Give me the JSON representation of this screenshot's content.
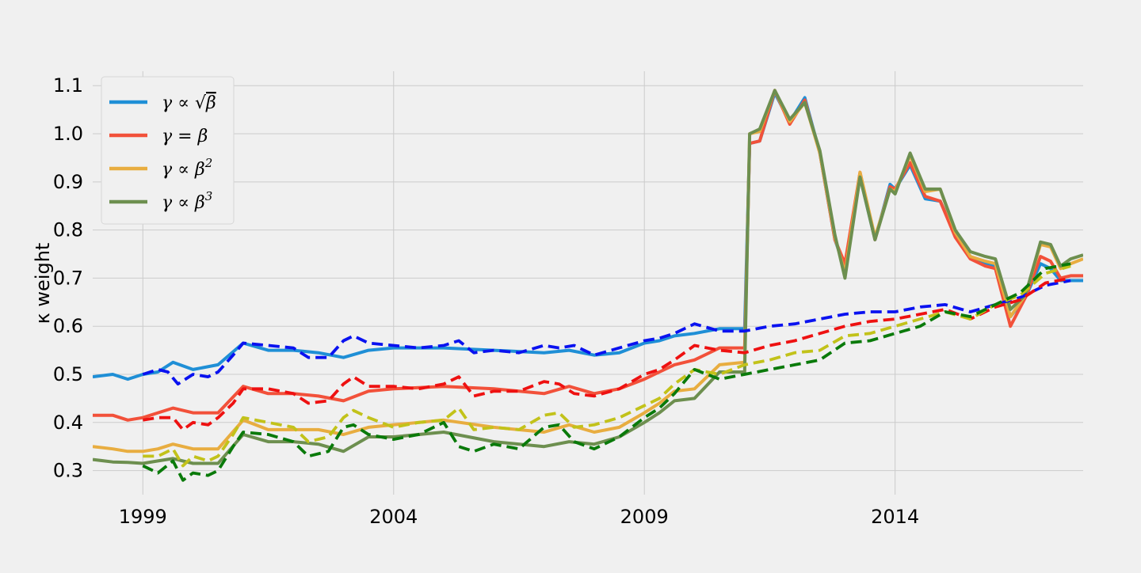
{
  "chart_data": {
    "type": "line",
    "ylabel": "κ weight",
    "xlim": [
      1998.0,
      2017.75
    ],
    "ylim": [
      0.25,
      1.13
    ],
    "xticks": [
      1999,
      2004,
      2009,
      2014
    ],
    "yticks": [
      0.3,
      0.4,
      0.5,
      0.6,
      0.7,
      0.8,
      0.9,
      1.0,
      1.1
    ],
    "grid": true,
    "legend_position": "top-left",
    "legend": [
      {
        "name": "γ ∝ √β",
        "color": "#1f8fd6"
      },
      {
        "name": "γ = β",
        "color": "#f2513a"
      },
      {
        "name": "γ ∝ β²",
        "color": "#e8ad40"
      },
      {
        "name": "γ ∝ β³",
        "color": "#6d8f4f"
      }
    ],
    "series": [
      {
        "key": "sqrt",
        "style": "solid",
        "color": "#1f8fd6",
        "x": [
          1998.0,
          1998.4,
          1998.7,
          1999.0,
          1999.3,
          1999.6,
          2000.0,
          2000.5,
          2001.0,
          2001.5,
          2002.0,
          2002.5,
          2003.0,
          2003.5,
          2004.0,
          2005.0,
          2006.0,
          2007.0,
          2007.5,
          2008.0,
          2008.5,
          2009.0,
          2009.3,
          2009.6,
          2010.0,
          2010.5,
          2011.0,
          2011.1,
          2011.3,
          2011.6,
          2011.9,
          2012.2,
          2012.5,
          2012.8,
          2013.0,
          2013.3,
          2013.6,
          2013.9,
          2014.0,
          2014.3,
          2014.6,
          2014.9,
          2015.2,
          2015.5,
          2015.8,
          2016.0,
          2016.3,
          2016.6,
          2016.9,
          2017.1,
          2017.3,
          2017.5,
          2017.75
        ],
        "y": [
          0.495,
          0.5,
          0.49,
          0.5,
          0.505,
          0.525,
          0.51,
          0.52,
          0.565,
          0.55,
          0.55,
          0.545,
          0.535,
          0.55,
          0.555,
          0.555,
          0.55,
          0.545,
          0.55,
          0.54,
          0.545,
          0.565,
          0.57,
          0.58,
          0.585,
          0.595,
          0.595,
          0.98,
          0.985,
          1.085,
          1.025,
          1.075,
          0.96,
          0.78,
          0.72,
          0.91,
          0.78,
          0.895,
          0.885,
          0.935,
          0.865,
          0.86,
          0.79,
          0.745,
          0.73,
          0.725,
          0.62,
          0.66,
          0.73,
          0.72,
          0.695,
          0.695,
          0.695
        ]
      },
      {
        "key": "linear",
        "style": "solid",
        "color": "#f2513a",
        "x": [
          1998.0,
          1998.4,
          1998.7,
          1999.0,
          1999.3,
          1999.6,
          2000.0,
          2000.5,
          2001.0,
          2001.5,
          2002.0,
          2002.5,
          2003.0,
          2003.5,
          2004.0,
          2005.0,
          2006.0,
          2007.0,
          2007.5,
          2008.0,
          2008.5,
          2009.0,
          2009.3,
          2009.6,
          2010.0,
          2010.5,
          2011.0,
          2011.1,
          2011.3,
          2011.6,
          2011.9,
          2012.2,
          2012.5,
          2012.8,
          2013.0,
          2013.3,
          2013.6,
          2013.9,
          2014.0,
          2014.3,
          2014.6,
          2014.9,
          2015.2,
          2015.5,
          2015.8,
          2016.0,
          2016.3,
          2016.6,
          2016.9,
          2017.1,
          2017.3,
          2017.5,
          2017.75
        ],
        "y": [
          0.415,
          0.415,
          0.405,
          0.41,
          0.42,
          0.43,
          0.42,
          0.42,
          0.475,
          0.46,
          0.46,
          0.455,
          0.445,
          0.465,
          0.47,
          0.475,
          0.47,
          0.46,
          0.475,
          0.46,
          0.47,
          0.49,
          0.505,
          0.52,
          0.53,
          0.555,
          0.555,
          0.98,
          0.985,
          1.09,
          1.02,
          1.07,
          0.96,
          0.78,
          0.73,
          0.92,
          0.78,
          0.89,
          0.885,
          0.94,
          0.87,
          0.86,
          0.785,
          0.74,
          0.725,
          0.72,
          0.6,
          0.66,
          0.745,
          0.735,
          0.7,
          0.705,
          0.705
        ]
      },
      {
        "key": "square",
        "style": "solid",
        "color": "#e8ad40",
        "x": [
          1998.0,
          1998.4,
          1998.7,
          1999.0,
          1999.3,
          1999.6,
          2000.0,
          2000.5,
          2001.0,
          2001.5,
          2002.0,
          2002.5,
          2003.0,
          2003.5,
          2004.0,
          2005.0,
          2006.0,
          2007.0,
          2007.5,
          2008.0,
          2008.5,
          2009.0,
          2009.3,
          2009.6,
          2010.0,
          2010.5,
          2011.0,
          2011.1,
          2011.3,
          2011.6,
          2011.9,
          2012.2,
          2012.5,
          2012.8,
          2013.0,
          2013.3,
          2013.6,
          2013.9,
          2014.0,
          2014.3,
          2014.6,
          2014.9,
          2015.2,
          2015.5,
          2015.8,
          2016.0,
          2016.3,
          2016.6,
          2016.9,
          2017.1,
          2017.3,
          2017.5,
          2017.75
        ],
        "y": [
          0.35,
          0.345,
          0.34,
          0.34,
          0.345,
          0.355,
          0.345,
          0.345,
          0.405,
          0.385,
          0.385,
          0.385,
          0.375,
          0.39,
          0.395,
          0.405,
          0.39,
          0.38,
          0.395,
          0.38,
          0.39,
          0.42,
          0.44,
          0.465,
          0.47,
          0.52,
          0.525,
          1.0,
          1.005,
          1.09,
          1.025,
          1.065,
          0.96,
          0.785,
          0.71,
          0.92,
          0.785,
          0.885,
          0.88,
          0.955,
          0.88,
          0.885,
          0.795,
          0.745,
          0.735,
          0.73,
          0.62,
          0.665,
          0.77,
          0.765,
          0.72,
          0.73,
          0.74
        ]
      },
      {
        "key": "cube",
        "style": "solid",
        "color": "#6d8f4f",
        "x": [
          1998.0,
          1998.4,
          1998.7,
          1999.0,
          1999.3,
          1999.6,
          2000.0,
          2000.5,
          2001.0,
          2001.5,
          2002.0,
          2002.5,
          2003.0,
          2003.5,
          2004.0,
          2005.0,
          2006.0,
          2007.0,
          2007.5,
          2008.0,
          2008.5,
          2009.0,
          2009.3,
          2009.6,
          2010.0,
          2010.5,
          2011.0,
          2011.1,
          2011.3,
          2011.6,
          2011.9,
          2012.2,
          2012.5,
          2012.8,
          2013.0,
          2013.3,
          2013.6,
          2013.9,
          2014.0,
          2014.3,
          2014.6,
          2014.9,
          2015.2,
          2015.5,
          2015.8,
          2016.0,
          2016.3,
          2016.6,
          2016.9,
          2017.1,
          2017.3,
          2017.5,
          2017.75
        ],
        "y": [
          0.323,
          0.318,
          0.317,
          0.315,
          0.32,
          0.325,
          0.315,
          0.315,
          0.375,
          0.36,
          0.36,
          0.355,
          0.34,
          0.37,
          0.37,
          0.38,
          0.36,
          0.35,
          0.36,
          0.355,
          0.37,
          0.4,
          0.42,
          0.445,
          0.45,
          0.505,
          0.505,
          1.0,
          1.01,
          1.09,
          1.03,
          1.065,
          0.965,
          0.79,
          0.7,
          0.91,
          0.78,
          0.885,
          0.875,
          0.96,
          0.885,
          0.885,
          0.8,
          0.755,
          0.745,
          0.74,
          0.635,
          0.665,
          0.775,
          0.77,
          0.725,
          0.74,
          0.748
        ]
      },
      {
        "key": "sqrt-dashed",
        "style": "dashed",
        "color": "#0a12f0",
        "x": [
          1999.0,
          1999.3,
          1999.5,
          1999.7,
          2000.0,
          2000.3,
          2000.5,
          2000.8,
          2001.0,
          2001.5,
          2002.0,
          2002.3,
          2002.7,
          2003.0,
          2003.2,
          2003.5,
          2004.0,
          2004.5,
          2005.0,
          2005.3,
          2005.6,
          2006.0,
          2006.5,
          2007.0,
          2007.3,
          2007.6,
          2008.0,
          2008.5,
          2009.0,
          2009.3,
          2009.6,
          2010.0,
          2010.5,
          2011.0,
          2011.5,
          2012.0,
          2012.5,
          2013.0,
          2013.5,
          2014.0,
          2014.5,
          2015.0,
          2015.5,
          2016.0,
          2016.5,
          2017.0,
          2017.5
        ],
        "y": [
          0.5,
          0.51,
          0.505,
          0.48,
          0.5,
          0.495,
          0.505,
          0.54,
          0.565,
          0.56,
          0.555,
          0.535,
          0.535,
          0.57,
          0.58,
          0.565,
          0.56,
          0.555,
          0.56,
          0.57,
          0.545,
          0.55,
          0.545,
          0.56,
          0.555,
          0.56,
          0.54,
          0.555,
          0.57,
          0.575,
          0.585,
          0.605,
          0.59,
          0.59,
          0.6,
          0.605,
          0.615,
          0.625,
          0.63,
          0.63,
          0.64,
          0.645,
          0.63,
          0.645,
          0.66,
          0.685,
          0.695
        ]
      },
      {
        "key": "linear-dashed",
        "style": "dashed",
        "color": "#ee1111",
        "x": [
          1999.0,
          1999.3,
          1999.6,
          1999.8,
          2000.0,
          2000.3,
          2000.5,
          2000.8,
          2001.0,
          2001.5,
          2002.0,
          2002.3,
          2002.7,
          2003.0,
          2003.2,
          2003.5,
          2004.0,
          2004.5,
          2005.0,
          2005.3,
          2005.6,
          2006.0,
          2006.5,
          2007.0,
          2007.3,
          2007.6,
          2008.0,
          2008.5,
          2009.0,
          2009.3,
          2009.6,
          2010.0,
          2010.5,
          2011.0,
          2011.5,
          2012.0,
          2012.5,
          2013.0,
          2013.5,
          2014.0,
          2014.5,
          2015.0,
          2015.5,
          2016.0,
          2016.5,
          2017.0,
          2017.5
        ],
        "y": [
          0.405,
          0.41,
          0.41,
          0.385,
          0.4,
          0.395,
          0.41,
          0.44,
          0.47,
          0.47,
          0.46,
          0.44,
          0.445,
          0.48,
          0.495,
          0.475,
          0.475,
          0.47,
          0.48,
          0.495,
          0.455,
          0.465,
          0.465,
          0.485,
          0.48,
          0.46,
          0.455,
          0.47,
          0.5,
          0.51,
          0.53,
          0.56,
          0.55,
          0.545,
          0.56,
          0.57,
          0.585,
          0.6,
          0.61,
          0.615,
          0.625,
          0.635,
          0.615,
          0.64,
          0.655,
          0.69,
          0.7
        ]
      },
      {
        "key": "square-dashed",
        "style": "dashed",
        "color": "#c2c21a",
        "x": [
          1999.0,
          1999.3,
          1999.6,
          1999.8,
          2000.0,
          2000.3,
          2000.5,
          2000.8,
          2001.0,
          2001.5,
          2002.0,
          2002.3,
          2002.7,
          2003.0,
          2003.2,
          2003.5,
          2004.0,
          2004.5,
          2005.0,
          2005.3,
          2005.6,
          2006.0,
          2006.5,
          2007.0,
          2007.3,
          2007.6,
          2008.0,
          2008.5,
          2009.0,
          2009.3,
          2009.6,
          2010.0,
          2010.5,
          2011.0,
          2011.5,
          2012.0,
          2012.5,
          2013.0,
          2013.5,
          2014.0,
          2014.5,
          2015.0,
          2015.5,
          2016.0,
          2016.5,
          2017.0,
          2017.5
        ],
        "y": [
          0.33,
          0.33,
          0.345,
          0.31,
          0.33,
          0.32,
          0.33,
          0.375,
          0.41,
          0.4,
          0.39,
          0.36,
          0.37,
          0.41,
          0.425,
          0.41,
          0.39,
          0.4,
          0.405,
          0.43,
          0.385,
          0.39,
          0.385,
          0.415,
          0.42,
          0.39,
          0.395,
          0.41,
          0.435,
          0.45,
          0.48,
          0.51,
          0.5,
          0.52,
          0.53,
          0.545,
          0.55,
          0.58,
          0.585,
          0.6,
          0.615,
          0.63,
          0.615,
          0.645,
          0.665,
          0.71,
          0.725
        ]
      },
      {
        "key": "cube-dashed",
        "style": "dashed",
        "color": "#0a7a0a",
        "x": [
          1999.0,
          1999.3,
          1999.6,
          1999.8,
          2000.0,
          2000.3,
          2000.5,
          2000.8,
          2001.0,
          2001.5,
          2002.0,
          2002.3,
          2002.7,
          2003.0,
          2003.2,
          2003.5,
          2004.0,
          2004.5,
          2005.0,
          2005.3,
          2005.6,
          2006.0,
          2006.5,
          2007.0,
          2007.3,
          2007.6,
          2008.0,
          2008.5,
          2009.0,
          2009.3,
          2009.6,
          2010.0,
          2010.5,
          2011.0,
          2011.5,
          2012.0,
          2012.5,
          2013.0,
          2013.5,
          2014.0,
          2014.5,
          2015.0,
          2015.5,
          2016.0,
          2016.5,
          2017.0,
          2017.5
        ],
        "y": [
          0.31,
          0.295,
          0.32,
          0.28,
          0.295,
          0.29,
          0.3,
          0.35,
          0.38,
          0.375,
          0.36,
          0.33,
          0.34,
          0.39,
          0.395,
          0.375,
          0.365,
          0.375,
          0.4,
          0.35,
          0.34,
          0.355,
          0.345,
          0.39,
          0.395,
          0.36,
          0.345,
          0.37,
          0.41,
          0.43,
          0.46,
          0.51,
          0.49,
          0.5,
          0.51,
          0.52,
          0.53,
          0.565,
          0.57,
          0.585,
          0.6,
          0.63,
          0.62,
          0.645,
          0.67,
          0.72,
          0.73
        ]
      }
    ]
  }
}
